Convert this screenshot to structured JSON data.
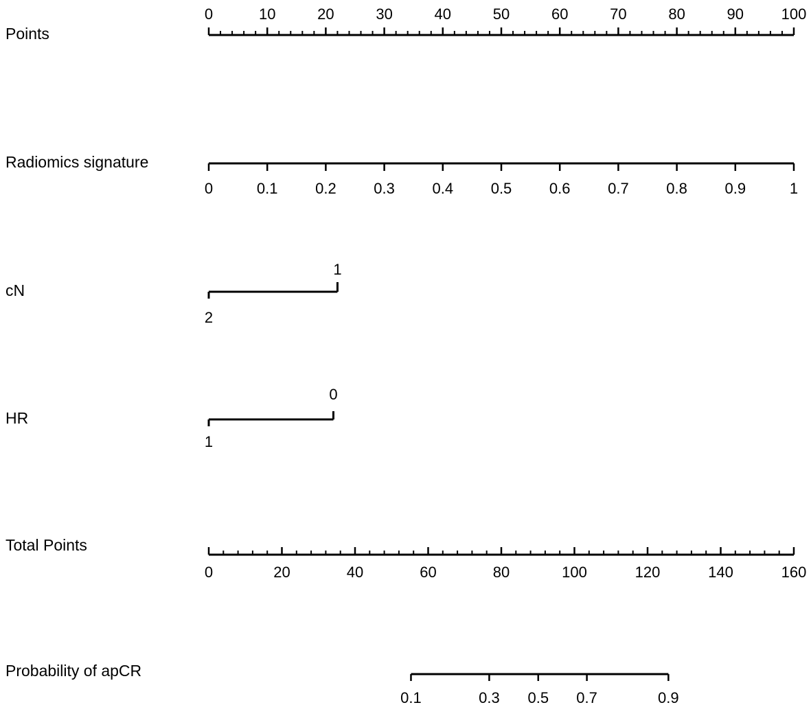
{
  "chart_data": {
    "type": "nomogram",
    "scales": [
      {
        "id": "points",
        "label": "Points",
        "range": [
          0,
          100
        ],
        "tick_labels": [
          "0",
          "10",
          "20",
          "30",
          "40",
          "50",
          "60",
          "70",
          "80",
          "90",
          "100"
        ],
        "tick_values": [
          0,
          10,
          20,
          30,
          40,
          50,
          60,
          70,
          80,
          90,
          100
        ],
        "minor_step": 2
      },
      {
        "id": "radiomics",
        "label": "Radiomics signature",
        "points_range": [
          0,
          100
        ],
        "tick_labels": [
          "0",
          "0.1",
          "0.2",
          "0.3",
          "0.4",
          "0.5",
          "0.6",
          "0.7",
          "0.8",
          "0.9",
          "1"
        ],
        "tick_points": [
          0,
          10,
          20,
          30,
          40,
          50,
          60,
          70,
          80,
          90,
          100
        ]
      },
      {
        "id": "cn",
        "label": "cN",
        "categories": [
          {
            "label": "2",
            "points": 0
          },
          {
            "label": "1",
            "points": 22
          }
        ]
      },
      {
        "id": "hr",
        "label": "HR",
        "categories": [
          {
            "label": "1",
            "points": 0
          },
          {
            "label": "0",
            "points": 21.3
          }
        ]
      },
      {
        "id": "total",
        "label": "Total Points",
        "range": [
          0,
          160
        ],
        "tick_labels": [
          "0",
          "20",
          "40",
          "60",
          "80",
          "100",
          "120",
          "140",
          "160"
        ],
        "tick_values": [
          0,
          20,
          40,
          60,
          80,
          100,
          120,
          140,
          160
        ],
        "minor_step": 4
      },
      {
        "id": "prob",
        "label": "Probability of apCR",
        "tick_labels": [
          "0.1",
          "0.3",
          "0.5",
          "0.7",
          "0.9"
        ],
        "tick_total_points": [
          55.3,
          76.7,
          90.1,
          103.4,
          125.7
        ]
      }
    ]
  }
}
